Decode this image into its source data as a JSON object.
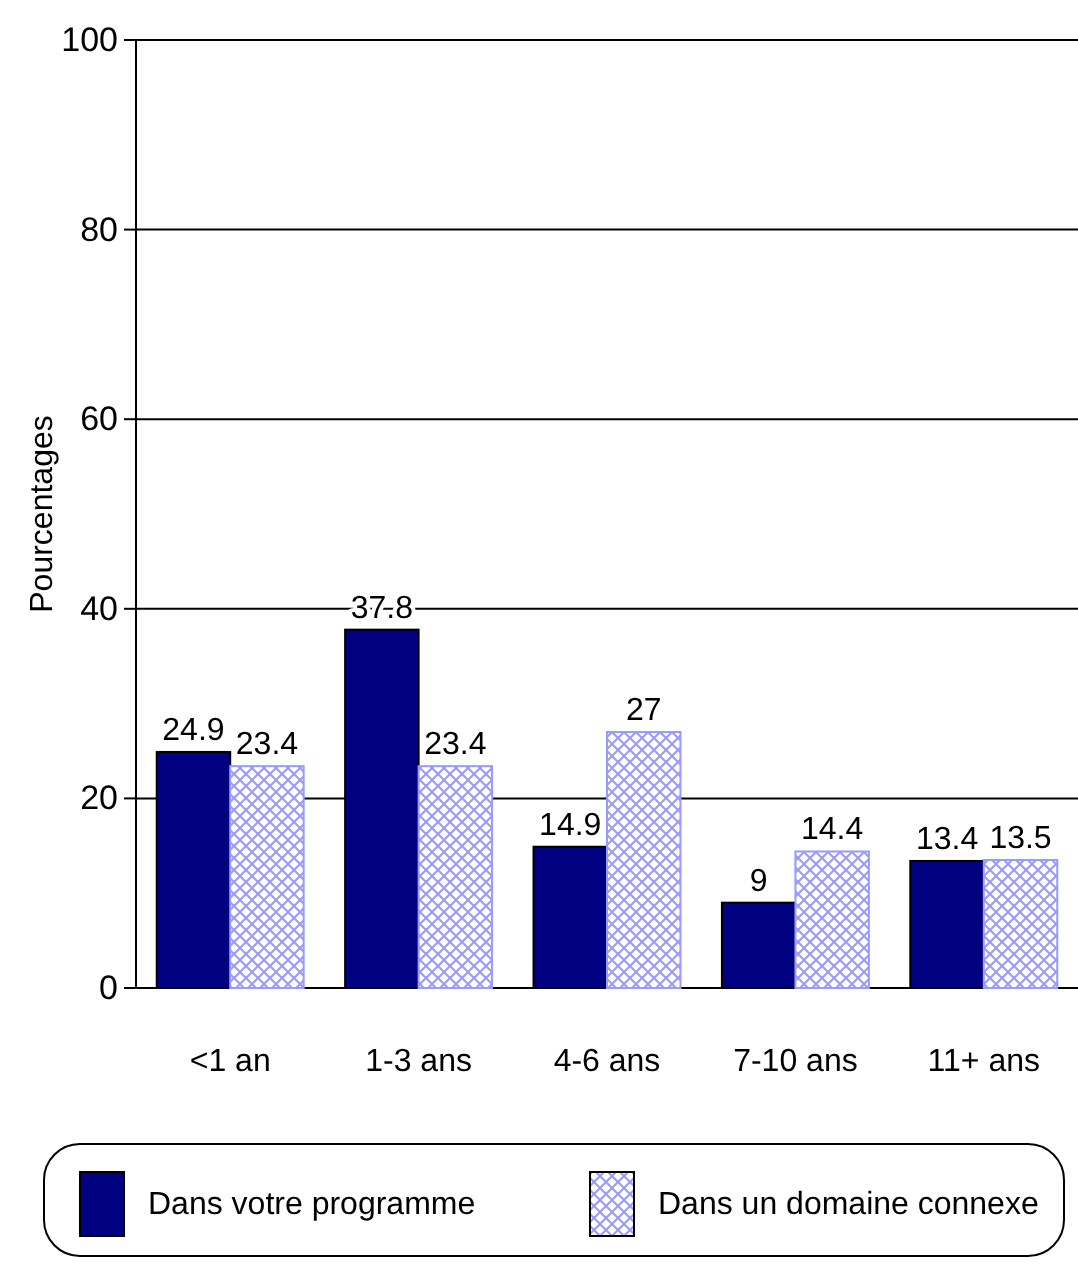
{
  "chart_data": {
    "type": "bar",
    "ylabel": "Pourcentages",
    "categories": [
      "<1 an",
      "1-3 ans",
      "4-6 ans",
      "7-10 ans",
      "11+ ans"
    ],
    "series": [
      {
        "name": "Dans votre programme",
        "color": "#000080",
        "values": [
          24.9,
          37.8,
          14.9,
          9,
          13.4
        ]
      },
      {
        "name": "Dans un domaine connexe",
        "color": "#9999ff",
        "values": [
          23.4,
          23.4,
          27,
          14.4,
          13.5
        ]
      }
    ],
    "ylim": [
      0,
      100
    ],
    "yticks": [
      0,
      20,
      40,
      60,
      80,
      100
    ],
    "grid": "y",
    "legend": "bottom",
    "data_labels": true
  }
}
